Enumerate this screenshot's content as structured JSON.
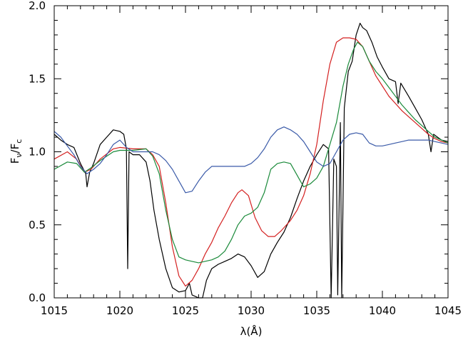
{
  "chart_data": {
    "type": "line",
    "xlabel": "λ(Å)",
    "ylabel_main": "F",
    "ylabel_sub1": "ν",
    "ylabel_mid": "/F",
    "ylabel_sub2": "c",
    "xlim": [
      1015,
      1045
    ],
    "ylim": [
      0.0,
      2.0
    ],
    "x_ticks": [
      1015,
      1020,
      1025,
      1030,
      1035,
      1040,
      1045
    ],
    "x_tick_labels": [
      "1015",
      "1020",
      "1025",
      "1030",
      "1035",
      "1040",
      "1045"
    ],
    "y_ticks": [
      0.0,
      0.5,
      1.0,
      1.5,
      2.0
    ],
    "y_tick_labels": [
      "0.0",
      "0.5",
      "1.0",
      "1.5",
      "2.0"
    ],
    "grid": false,
    "series": [
      {
        "color": "#000000",
        "points": [
          [
            1015,
            1.12
          ],
          [
            1015.5,
            1.08
          ],
          [
            1016,
            1.05
          ],
          [
            1016.5,
            1.03
          ],
          [
            1017,
            0.92
          ],
          [
            1017.4,
            0.85
          ],
          [
            1017.5,
            0.76
          ],
          [
            1017.7,
            0.86
          ],
          [
            1018,
            0.92
          ],
          [
            1018.5,
            1.05
          ],
          [
            1019,
            1.1
          ],
          [
            1019.5,
            1.15
          ],
          [
            1020,
            1.14
          ],
          [
            1020.3,
            1.12
          ],
          [
            1020.5,
            1.02
          ],
          [
            1020.6,
            0.2
          ],
          [
            1020.7,
            1.0
          ],
          [
            1021,
            0.98
          ],
          [
            1021.5,
            0.98
          ],
          [
            1022,
            0.93
          ],
          [
            1022.3,
            0.8
          ],
          [
            1022.6,
            0.6
          ],
          [
            1023,
            0.4
          ],
          [
            1023.5,
            0.2
          ],
          [
            1024,
            0.07
          ],
          [
            1024.5,
            0.04
          ],
          [
            1025,
            0.05
          ],
          [
            1025.3,
            0.1
          ],
          [
            1025.5,
            0.02
          ],
          [
            1026,
            0.0
          ],
          [
            1026.3,
            0.0
          ],
          [
            1026.6,
            0.12
          ],
          [
            1027,
            0.2
          ],
          [
            1027.5,
            0.23
          ],
          [
            1028,
            0.25
          ],
          [
            1028.5,
            0.27
          ],
          [
            1029,
            0.3
          ],
          [
            1029.5,
            0.28
          ],
          [
            1030,
            0.22
          ],
          [
            1030.5,
            0.14
          ],
          [
            1031,
            0.18
          ],
          [
            1031.5,
            0.3
          ],
          [
            1032,
            0.38
          ],
          [
            1032.5,
            0.45
          ],
          [
            1033,
            0.55
          ],
          [
            1033.5,
            0.68
          ],
          [
            1034,
            0.8
          ],
          [
            1034.5,
            0.9
          ],
          [
            1035,
            0.98
          ],
          [
            1035.5,
            1.05
          ],
          [
            1035.9,
            1.02
          ],
          [
            1036.1,
            0.0
          ],
          [
            1036.3,
            0.95
          ],
          [
            1036.5,
            0.9
          ],
          [
            1036.6,
            0.02
          ],
          [
            1036.8,
            1.2
          ],
          [
            1036.9,
            0.0
          ],
          [
            1037.1,
            1.3
          ],
          [
            1037.4,
            1.55
          ],
          [
            1037.7,
            1.62
          ],
          [
            1038,
            1.8
          ],
          [
            1038.3,
            1.88
          ],
          [
            1038.5,
            1.85
          ],
          [
            1038.8,
            1.83
          ],
          [
            1039.2,
            1.75
          ],
          [
            1039.6,
            1.65
          ],
          [
            1040,
            1.58
          ],
          [
            1040.5,
            1.5
          ],
          [
            1041,
            1.48
          ],
          [
            1041.2,
            1.33
          ],
          [
            1041.4,
            1.47
          ],
          [
            1042,
            1.38
          ],
          [
            1042.5,
            1.3
          ],
          [
            1043,
            1.22
          ],
          [
            1043.5,
            1.12
          ],
          [
            1043.7,
            1.0
          ],
          [
            1043.9,
            1.12
          ],
          [
            1044.5,
            1.08
          ],
          [
            1045,
            1.07
          ]
        ]
      },
      {
        "color": "#d42020",
        "points": [
          [
            1015,
            0.95
          ],
          [
            1016,
            1.0
          ],
          [
            1016.7,
            0.95
          ],
          [
            1017.3,
            0.86
          ],
          [
            1017.8,
            0.88
          ],
          [
            1018.5,
            0.95
          ],
          [
            1019.5,
            1.02
          ],
          [
            1020,
            1.03
          ],
          [
            1021,
            1.02
          ],
          [
            1022,
            1.02
          ],
          [
            1022.5,
            0.98
          ],
          [
            1023,
            0.9
          ],
          [
            1023.5,
            0.65
          ],
          [
            1024,
            0.35
          ],
          [
            1024.5,
            0.15
          ],
          [
            1025,
            0.08
          ],
          [
            1025.5,
            0.12
          ],
          [
            1026,
            0.2
          ],
          [
            1026.5,
            0.3
          ],
          [
            1027,
            0.38
          ],
          [
            1027.5,
            0.48
          ],
          [
            1028,
            0.56
          ],
          [
            1028.5,
            0.65
          ],
          [
            1029,
            0.72
          ],
          [
            1029.3,
            0.74
          ],
          [
            1029.8,
            0.7
          ],
          [
            1030.3,
            0.55
          ],
          [
            1030.8,
            0.46
          ],
          [
            1031.3,
            0.42
          ],
          [
            1031.8,
            0.42
          ],
          [
            1032.3,
            0.46
          ],
          [
            1033,
            0.53
          ],
          [
            1033.5,
            0.6
          ],
          [
            1034,
            0.7
          ],
          [
            1034.5,
            0.85
          ],
          [
            1035,
            1.05
          ],
          [
            1035.5,
            1.35
          ],
          [
            1036,
            1.6
          ],
          [
            1036.5,
            1.75
          ],
          [
            1037,
            1.78
          ],
          [
            1037.5,
            1.78
          ],
          [
            1038,
            1.77
          ],
          [
            1038.5,
            1.72
          ],
          [
            1039,
            1.62
          ],
          [
            1039.5,
            1.52
          ],
          [
            1040,
            1.45
          ],
          [
            1040.5,
            1.38
          ],
          [
            1041,
            1.33
          ],
          [
            1041.5,
            1.28
          ],
          [
            1042,
            1.24
          ],
          [
            1042.5,
            1.2
          ],
          [
            1043,
            1.16
          ],
          [
            1043.5,
            1.12
          ],
          [
            1044,
            1.09
          ],
          [
            1044.5,
            1.07
          ],
          [
            1045,
            1.06
          ]
        ]
      },
      {
        "color": "#1a8a3a",
        "points": [
          [
            1015,
            0.88
          ],
          [
            1016,
            0.93
          ],
          [
            1016.7,
            0.92
          ],
          [
            1017.3,
            0.86
          ],
          [
            1017.8,
            0.89
          ],
          [
            1018.5,
            0.94
          ],
          [
            1019.5,
            1.0
          ],
          [
            1020,
            1.01
          ],
          [
            1021,
            1.01
          ],
          [
            1022,
            1.02
          ],
          [
            1022.5,
            0.97
          ],
          [
            1023,
            0.85
          ],
          [
            1023.5,
            0.6
          ],
          [
            1024,
            0.4
          ],
          [
            1024.5,
            0.28
          ],
          [
            1025,
            0.26
          ],
          [
            1025.5,
            0.25
          ],
          [
            1026,
            0.24
          ],
          [
            1027,
            0.26
          ],
          [
            1027.5,
            0.28
          ],
          [
            1028,
            0.32
          ],
          [
            1028.5,
            0.4
          ],
          [
            1029,
            0.5
          ],
          [
            1029.5,
            0.56
          ],
          [
            1030,
            0.58
          ],
          [
            1030.5,
            0.62
          ],
          [
            1031,
            0.72
          ],
          [
            1031.5,
            0.88
          ],
          [
            1032,
            0.92
          ],
          [
            1032.5,
            0.93
          ],
          [
            1033,
            0.92
          ],
          [
            1033.5,
            0.84
          ],
          [
            1034,
            0.76
          ],
          [
            1034.5,
            0.78
          ],
          [
            1035,
            0.82
          ],
          [
            1035.5,
            0.9
          ],
          [
            1036,
            1.05
          ],
          [
            1036.5,
            1.2
          ],
          [
            1037,
            1.45
          ],
          [
            1037.4,
            1.6
          ],
          [
            1037.8,
            1.7
          ],
          [
            1038.1,
            1.75
          ],
          [
            1038.5,
            1.72
          ],
          [
            1039,
            1.62
          ],
          [
            1039.5,
            1.55
          ],
          [
            1040,
            1.5
          ],
          [
            1040.5,
            1.44
          ],
          [
            1041,
            1.38
          ],
          [
            1041.5,
            1.32
          ],
          [
            1042,
            1.27
          ],
          [
            1042.5,
            1.22
          ],
          [
            1043,
            1.18
          ],
          [
            1043.5,
            1.14
          ],
          [
            1044,
            1.1
          ],
          [
            1044.5,
            1.08
          ],
          [
            1045,
            1.06
          ]
        ]
      },
      {
        "color": "#3a5aa8",
        "points": [
          [
            1015,
            1.14
          ],
          [
            1015.5,
            1.1
          ],
          [
            1016,
            1.04
          ],
          [
            1016.5,
            0.98
          ],
          [
            1017,
            0.9
          ],
          [
            1017.5,
            0.85
          ],
          [
            1018,
            0.88
          ],
          [
            1018.5,
            0.92
          ],
          [
            1019,
            0.98
          ],
          [
            1019.5,
            1.05
          ],
          [
            1020,
            1.08
          ],
          [
            1020.5,
            1.03
          ],
          [
            1021,
            1.0
          ],
          [
            1021.5,
            1.0
          ],
          [
            1022,
            1.0
          ],
          [
            1022.5,
            1.0
          ],
          [
            1023,
            0.98
          ],
          [
            1023.5,
            0.94
          ],
          [
            1024,
            0.88
          ],
          [
            1024.5,
            0.8
          ],
          [
            1025,
            0.72
          ],
          [
            1025.5,
            0.73
          ],
          [
            1026,
            0.8
          ],
          [
            1026.5,
            0.86
          ],
          [
            1027,
            0.9
          ],
          [
            1027.5,
            0.9
          ],
          [
            1028,
            0.9
          ],
          [
            1028.5,
            0.9
          ],
          [
            1029,
            0.9
          ],
          [
            1029.5,
            0.9
          ],
          [
            1030,
            0.92
          ],
          [
            1030.5,
            0.96
          ],
          [
            1031,
            1.02
          ],
          [
            1031.5,
            1.1
          ],
          [
            1032,
            1.15
          ],
          [
            1032.5,
            1.17
          ],
          [
            1033,
            1.15
          ],
          [
            1033.5,
            1.12
          ],
          [
            1034,
            1.07
          ],
          [
            1034.5,
            1.0
          ],
          [
            1035,
            0.93
          ],
          [
            1035.5,
            0.9
          ],
          [
            1036,
            0.92
          ],
          [
            1036.5,
            1.0
          ],
          [
            1037,
            1.08
          ],
          [
            1037.5,
            1.12
          ],
          [
            1038,
            1.13
          ],
          [
            1038.5,
            1.12
          ],
          [
            1039,
            1.06
          ],
          [
            1039.5,
            1.04
          ],
          [
            1040,
            1.04
          ],
          [
            1040.5,
            1.05
          ],
          [
            1041,
            1.06
          ],
          [
            1041.5,
            1.07
          ],
          [
            1042,
            1.08
          ],
          [
            1042.5,
            1.08
          ],
          [
            1043,
            1.08
          ],
          [
            1043.5,
            1.08
          ],
          [
            1044,
            1.07
          ],
          [
            1044.5,
            1.06
          ],
          [
            1045,
            1.05
          ]
        ]
      }
    ]
  }
}
